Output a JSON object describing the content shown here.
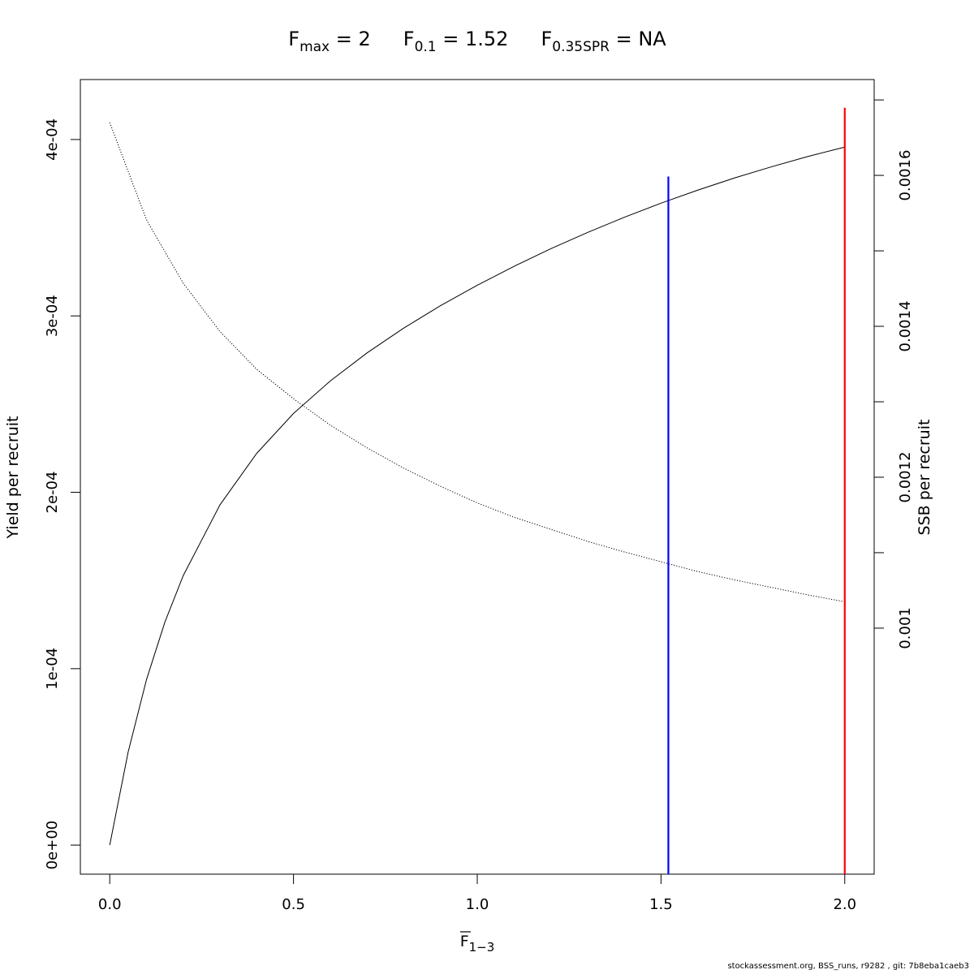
{
  "title": {
    "fmax": {
      "base": "F",
      "sub": "max",
      "rest": " = 2"
    },
    "f01": {
      "base": "F",
      "sub": "0.1",
      "rest": " = 1.52"
    },
    "fspr": {
      "base": "F",
      "sub": "0.35SPR",
      "rest": " = NA"
    }
  },
  "footer": "stockassessment.org, BSS_runs, r9282 , git: 7b8eba1caeb3",
  "chart_data": {
    "type": "line",
    "xlabel": {
      "base": "F",
      "sub": "1−3"
    },
    "ylabel": "Yield per recruit",
    "y2label": "SSB per recruit",
    "xlim": [
      -0.08,
      2.08
    ],
    "ylim": [
      -1.65e-05,
      0.000434
    ],
    "y2lim": [
      0.000674,
      0.001727
    ],
    "x_ticks": [
      "0.0",
      "0.5",
      "1.0",
      "1.5",
      "2.0"
    ],
    "x_tick_values": [
      0,
      0.5,
      1,
      1.5,
      2
    ],
    "y_ticks": [
      "0e+00",
      "1e-04",
      "2e-04",
      "3e-04",
      "4e-04"
    ],
    "y_tick_values": [
      0,
      0.0001,
      0.0002,
      0.0003,
      0.0004
    ],
    "y2_ticks": [
      "0.001",
      "0.0012",
      "0.0014",
      "0.0016"
    ],
    "y2_tick_values": [
      0.001,
      0.0012,
      0.0014,
      0.0016
    ],
    "y2_minor_tick_values": [
      0.0011,
      0.0013,
      0.0015,
      0.0017
    ],
    "series": [
      {
        "axis": "left",
        "style": "solid",
        "color": "#000000",
        "x": [
          0,
          0.05,
          0.1,
          0.15,
          0.2,
          0.3,
          0.4,
          0.5,
          0.6,
          0.7,
          0.8,
          0.9,
          1.0,
          1.1,
          1.2,
          1.3,
          1.4,
          1.5,
          1.6,
          1.7,
          1.8,
          1.9,
          2.0
        ],
        "y": [
          0,
          5.27e-05,
          9.38e-05,
          0.0001264,
          0.0001528,
          0.0001929,
          0.0002221,
          0.0002447,
          0.0002631,
          0.000279,
          0.0002931,
          0.0003058,
          0.0003174,
          0.0003281,
          0.0003381,
          0.0003473,
          0.0003559,
          0.0003639,
          0.0003713,
          0.0003782,
          0.0003845,
          0.0003904,
          0.0003957
        ]
      },
      {
        "axis": "right",
        "style": "dotted",
        "color": "#000000",
        "x": [
          0,
          0.1,
          0.2,
          0.3,
          0.4,
          0.5,
          0.6,
          0.7,
          0.8,
          0.9,
          1.0,
          1.1,
          1.2,
          1.3,
          1.4,
          1.5,
          1.6,
          1.7,
          1.8,
          1.9,
          2.0
        ],
        "y": [
          0.00167,
          0.001541,
          0.001457,
          0.001393,
          0.001343,
          0.001304,
          0.001269,
          0.001239,
          0.001212,
          0.001188,
          0.001166,
          0.001147,
          0.001131,
          0.001115,
          0.001101,
          0.001088,
          0.001075,
          0.001064,
          0.001054,
          0.001044,
          0.001035
        ]
      }
    ],
    "vlines": [
      {
        "x": 1.52,
        "axis": "left",
        "y_top": 0.000379,
        "color": "#0000ff"
      },
      {
        "x": 2.0,
        "axis": "left",
        "y_top": 0.000418,
        "color": "#ff0000"
      }
    ]
  }
}
